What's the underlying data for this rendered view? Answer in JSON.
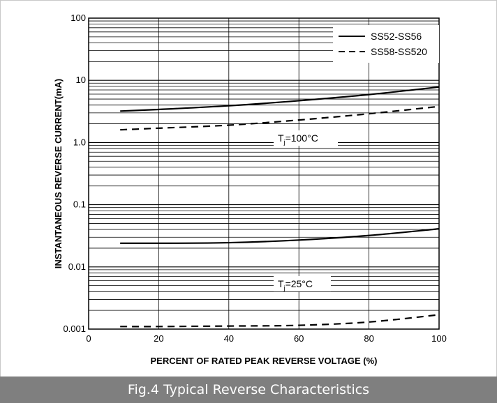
{
  "chart_data": {
    "type": "line",
    "xlabel": "PERCENT OF RATED PEAK REVERSE VOLTAGE (%)",
    "ylabel": "INSTANTANEOUS REVERSE CURRENT(mA)",
    "xlim": [
      0,
      100
    ],
    "ylim": [
      0.001,
      100
    ],
    "yscale": "log",
    "grid": true,
    "legend_position": "top-right",
    "x_ticks": [
      "0",
      "20",
      "40",
      "60",
      "80",
      "100"
    ],
    "y_ticks": [
      "0.001",
      "0.01",
      "0.1",
      "1.0",
      "10",
      "100"
    ],
    "series": [
      {
        "name": "SS52-SS56",
        "style": "solid",
        "group": "Tj100",
        "x": [
          9,
          20,
          40,
          60,
          80,
          100
        ],
        "y": [
          3.2,
          3.4,
          3.9,
          4.7,
          5.9,
          7.8
        ]
      },
      {
        "name": "SS58-SS520",
        "style": "dashed",
        "group": "Tj100",
        "x": [
          9,
          20,
          40,
          60,
          80,
          100
        ],
        "y": [
          1.6,
          1.7,
          1.9,
          2.3,
          2.9,
          3.8
        ]
      },
      {
        "name": "SS52-SS56",
        "style": "solid",
        "group": "Tj25",
        "x": [
          9,
          20,
          40,
          60,
          80,
          100
        ],
        "y": [
          0.024,
          0.024,
          0.0245,
          0.027,
          0.032,
          0.041
        ]
      },
      {
        "name": "SS58-SS520",
        "style": "dashed",
        "group": "Tj25",
        "x": [
          9,
          20,
          40,
          60,
          80,
          100
        ],
        "y": [
          0.0011,
          0.0011,
          0.00112,
          0.00115,
          0.0013,
          0.0017
        ]
      }
    ],
    "legend": [
      {
        "label": "SS52-SS56",
        "style": "solid"
      },
      {
        "label": "SS58-SS520",
        "style": "dashed"
      }
    ],
    "annotations": [
      {
        "text_prefix": "T",
        "sub": "j",
        "text_suffix": "=100°C"
      },
      {
        "text_prefix": "T",
        "sub": "j",
        "text_suffix": "=25°C"
      }
    ]
  },
  "caption": "Fig.4 Typical Reverse Characteristics"
}
